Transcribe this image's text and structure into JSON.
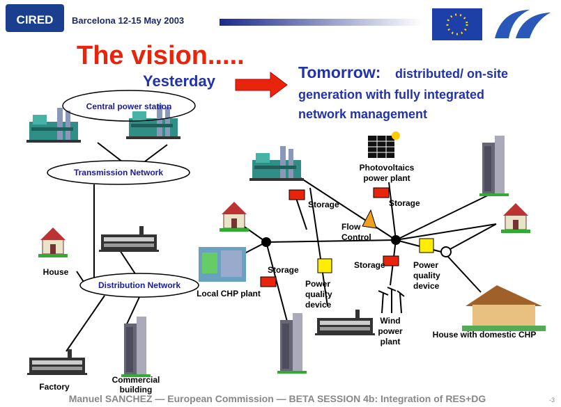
{
  "header": {
    "logo": "CIRED",
    "event": "Barcelona 12-15 May 2003"
  },
  "title": "The vision.....",
  "yesterday": {
    "label": "Yesterday",
    "central_power_station": "Central power station",
    "transmission_network": "Transmission Network",
    "distribution_network": "Distribution Network",
    "house": "House",
    "factory": "Factory",
    "commercial_building": [
      "Commercial",
      "building"
    ]
  },
  "tomorrow": {
    "label": "Tomorrow:",
    "lines": [
      "distributed/ on-site",
      "generation with fully integrated",
      "network management"
    ],
    "photovoltaics": [
      "Photovoltaics",
      "power plant"
    ],
    "storage": [
      "Storage",
      "Storage",
      "Storage",
      "Storage"
    ],
    "flow_control": [
      "Flow",
      "Control"
    ],
    "power_quality_1": [
      "Power",
      "quality",
      "device"
    ],
    "power_quality_2": [
      "Power",
      "quality",
      "device"
    ],
    "local_chp": "Local CHP plant",
    "wind": [
      "Wind",
      "power",
      "plant"
    ],
    "house_chp": "House with domestic CHP"
  },
  "footer": {
    "text": "Manuel SANCHEZ — European Commission — BETA SESSION 4b: Integration of RES+DG",
    "page": "-3"
  }
}
